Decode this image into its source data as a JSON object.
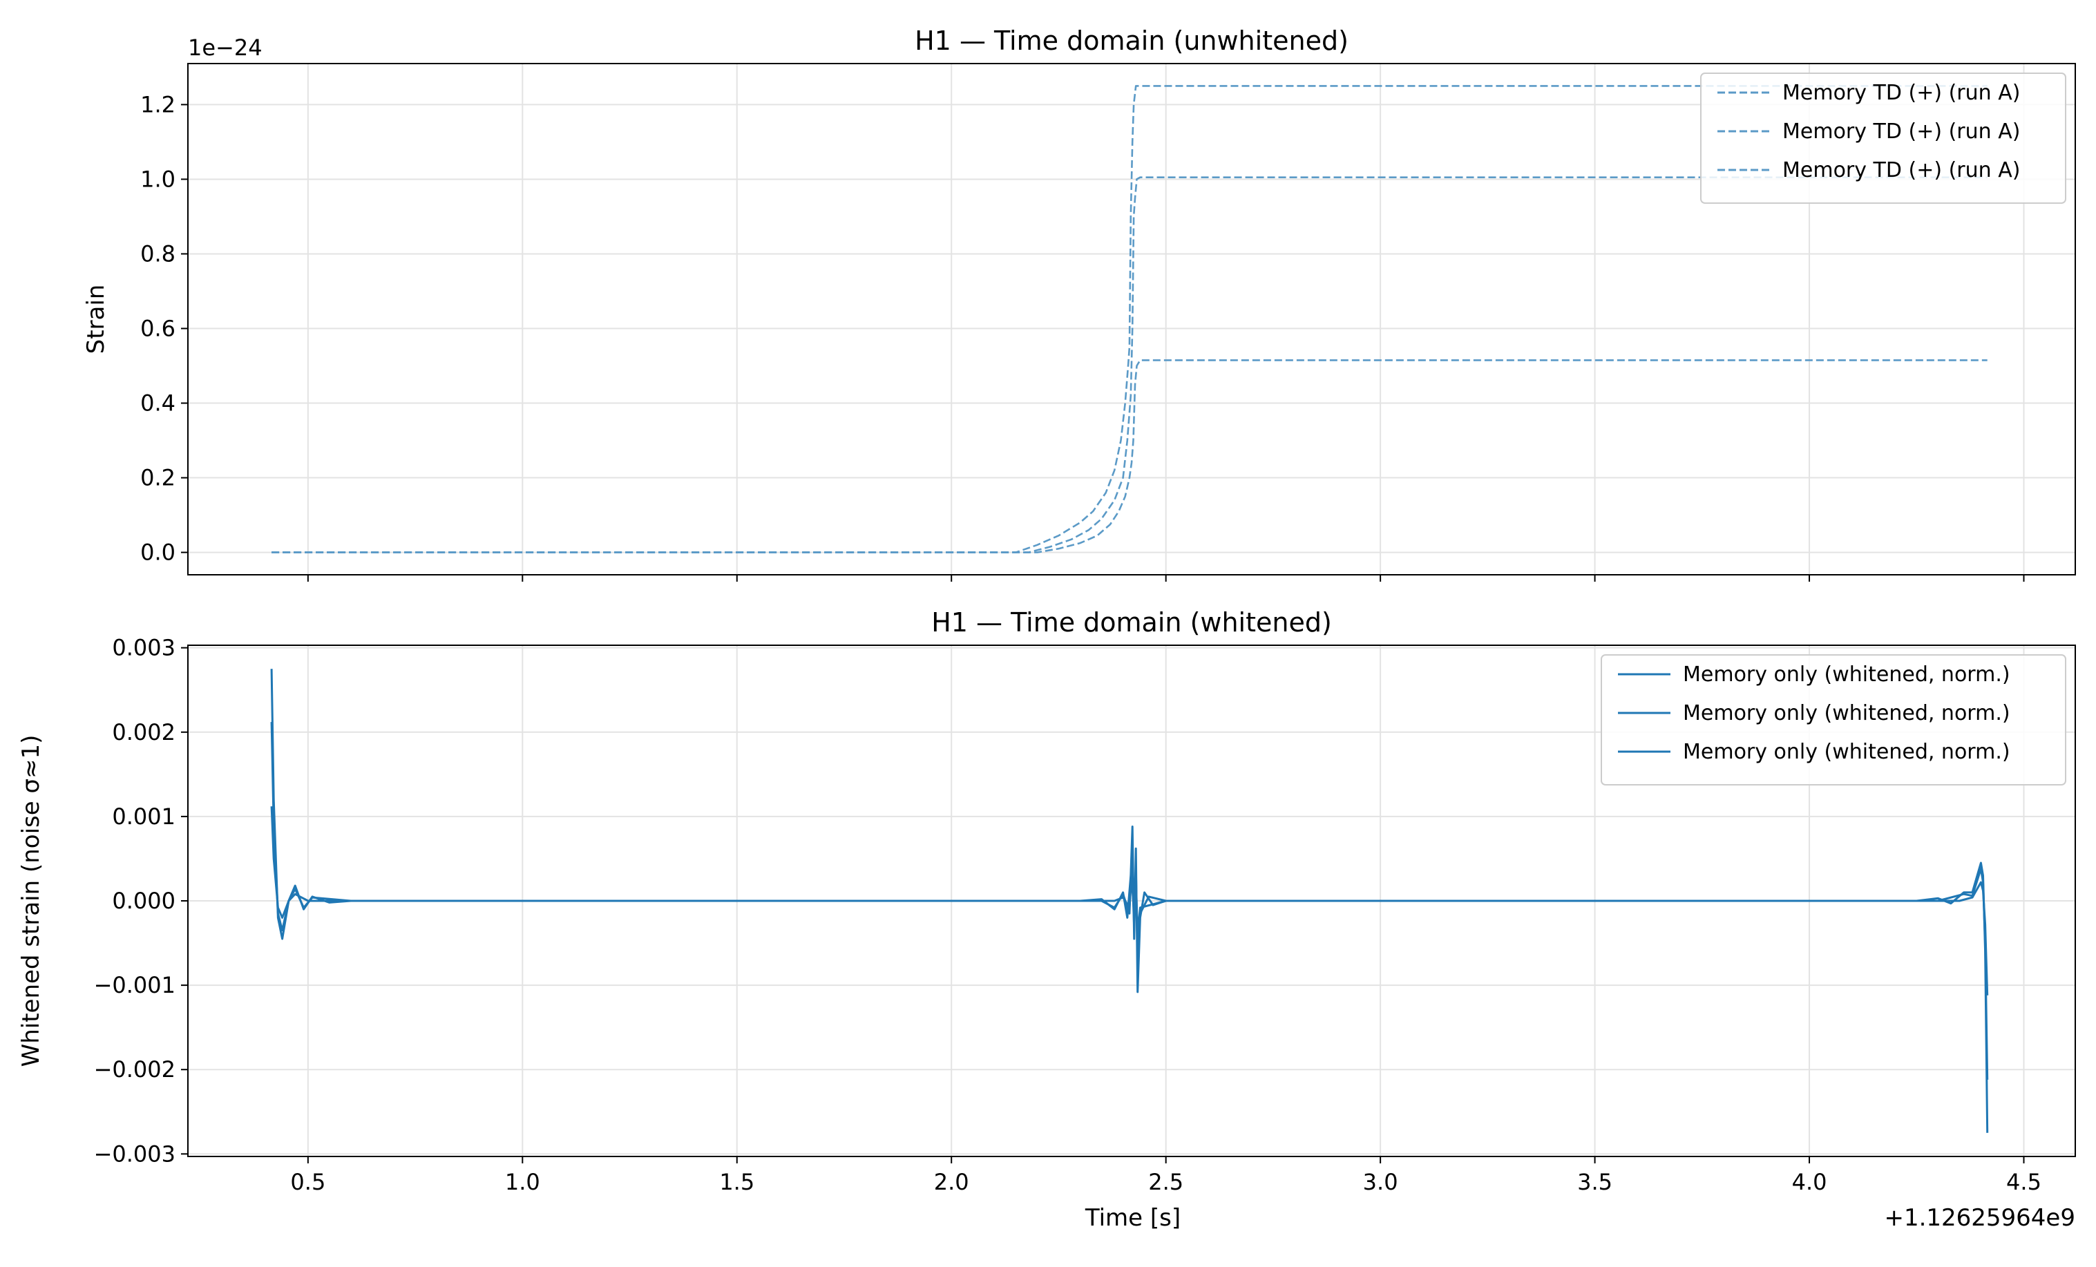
{
  "chart_data": [
    {
      "type": "line",
      "title": "H1 — Time domain (unwhitened)",
      "xlabel": "",
      "ylabel": "Strain",
      "y_multiplier_label": "1e−24",
      "xlim": [
        0.22,
        4.62
      ],
      "ylim": [
        -0.06,
        1.31
      ],
      "x_ticks": [
        0.5,
        1.0,
        1.5,
        2.0,
        2.5,
        3.0,
        3.5,
        4.0,
        4.5
      ],
      "x_tick_labels_shown": false,
      "y_ticks": [
        0.0,
        0.2,
        0.4,
        0.6,
        0.8,
        1.0,
        1.2
      ],
      "y_tick_labels": [
        "0.0",
        "0.2",
        "0.4",
        "0.6",
        "0.8",
        "1.0",
        "1.2"
      ],
      "grid": true,
      "legend_position": "top-right",
      "line_style": "dashed",
      "color": "#5b9ac7",
      "series": [
        {
          "name": "Memory TD (+) (run A)",
          "points": [
            [
              0.415,
              0
            ],
            [
              2.15,
              0
            ],
            [
              2.2,
              0.02
            ],
            [
              2.25,
              0.045
            ],
            [
              2.3,
              0.08
            ],
            [
              2.33,
              0.11
            ],
            [
              2.36,
              0.16
            ],
            [
              2.38,
              0.22
            ],
            [
              2.395,
              0.3
            ],
            [
              2.405,
              0.4
            ],
            [
              2.412,
              0.5
            ],
            [
              2.415,
              0.55
            ],
            [
              2.418,
              0.9
            ],
            [
              2.42,
              1.0
            ],
            [
              2.422,
              1.1
            ],
            [
              2.425,
              1.2
            ],
            [
              2.43,
              1.25
            ],
            [
              4.415,
              1.25
            ]
          ]
        },
        {
          "name": "Memory TD (+) (run A)",
          "points": [
            [
              0.415,
              0
            ],
            [
              2.18,
              0
            ],
            [
              2.23,
              0.015
            ],
            [
              2.28,
              0.035
            ],
            [
              2.32,
              0.06
            ],
            [
              2.35,
              0.09
            ],
            [
              2.38,
              0.14
            ],
            [
              2.4,
              0.2
            ],
            [
              2.41,
              0.3
            ],
            [
              2.418,
              0.42
            ],
            [
              2.422,
              0.6
            ],
            [
              2.425,
              0.9
            ],
            [
              2.428,
              0.95
            ],
            [
              2.432,
              1.0
            ],
            [
              2.44,
              1.005
            ],
            [
              4.415,
              1.005
            ]
          ]
        },
        {
          "name": "Memory TD (+) (run A)",
          "points": [
            [
              0.415,
              0
            ],
            [
              2.2,
              0
            ],
            [
              2.25,
              0.01
            ],
            [
              2.3,
              0.025
            ],
            [
              2.34,
              0.045
            ],
            [
              2.37,
              0.075
            ],
            [
              2.39,
              0.11
            ],
            [
              2.405,
              0.15
            ],
            [
              2.415,
              0.2
            ],
            [
              2.42,
              0.24
            ],
            [
              2.424,
              0.3
            ],
            [
              2.428,
              0.45
            ],
            [
              2.432,
              0.5
            ],
            [
              2.44,
              0.515
            ],
            [
              4.415,
              0.515
            ]
          ]
        }
      ]
    },
    {
      "type": "line",
      "title": "H1 — Time domain (whitened)",
      "xlabel": "Time [s]",
      "ylabel": "Whitened strain (noise σ≈1)",
      "x_offset_label": "+1.12625964e9",
      "xlim": [
        0.22,
        4.62
      ],
      "ylim": [
        -0.00303,
        0.00303
      ],
      "x_ticks": [
        0.5,
        1.0,
        1.5,
        2.0,
        2.5,
        3.0,
        3.5,
        4.0,
        4.5
      ],
      "x_tick_labels": [
        "0.5",
        "1.0",
        "1.5",
        "2.0",
        "2.5",
        "3.0",
        "3.5",
        "4.0",
        "4.5"
      ],
      "y_ticks": [
        -0.003,
        -0.002,
        -0.001,
        0.0,
        0.001,
        0.002,
        0.003
      ],
      "y_tick_labels": [
        "−0.003",
        "−0.002",
        "−0.001",
        "0.000",
        "0.001",
        "0.002",
        "0.003"
      ],
      "grid": true,
      "legend_position": "top-right",
      "line_style": "solid",
      "color": "#1f77b4",
      "series": [
        {
          "name": "Memory only (whitened, norm.)",
          "points": [
            [
              0.415,
              0.00275
            ],
            [
              0.42,
              0.0012
            ],
            [
              0.43,
              -0.0002
            ],
            [
              0.44,
              -0.00045
            ],
            [
              0.455,
              0
            ],
            [
              0.47,
              0.00018
            ],
            [
              0.49,
              -0.0001
            ],
            [
              0.51,
              5e-05
            ],
            [
              0.55,
              -2e-05
            ],
            [
              0.6,
              0
            ],
            [
              2.3,
              0
            ],
            [
              2.35,
              2e-05
            ],
            [
              2.38,
              -0.0001
            ],
            [
              2.4,
              0.0001
            ],
            [
              2.41,
              -0.0002
            ],
            [
              2.418,
              0.0003
            ],
            [
              2.422,
              0.00088
            ],
            [
              2.426,
              -0.00045
            ],
            [
              2.43,
              0.00062
            ],
            [
              2.434,
              -0.00108
            ],
            [
              2.44,
              -0.0002
            ],
            [
              2.45,
              0.0001
            ],
            [
              2.47,
              -5e-05
            ],
            [
              2.5,
              0
            ],
            [
              4.25,
              0
            ],
            [
              4.3,
              3e-05
            ],
            [
              4.33,
              -3e-05
            ],
            [
              4.36,
              0.0001
            ],
            [
              4.38,
              0.0001
            ],
            [
              4.4,
              0.00045
            ],
            [
              4.405,
              0.0003
            ],
            [
              4.41,
              -0.0006
            ],
            [
              4.415,
              -0.00275
            ]
          ]
        },
        {
          "name": "Memory only (whitened, norm.)",
          "points": [
            [
              0.415,
              0.00212
            ],
            [
              0.42,
              0.0009
            ],
            [
              0.43,
              -0.00015
            ],
            [
              0.44,
              -0.00035
            ],
            [
              0.455,
              0
            ],
            [
              0.47,
              0.00014
            ],
            [
              0.49,
              -8e-05
            ],
            [
              0.51,
              4e-05
            ],
            [
              0.6,
              0
            ],
            [
              2.35,
              0
            ],
            [
              2.38,
              -8e-05
            ],
            [
              2.4,
              8e-05
            ],
            [
              2.415,
              -0.00015
            ],
            [
              2.42,
              0.0005
            ],
            [
              2.426,
              -0.0003
            ],
            [
              2.43,
              0.0004
            ],
            [
              2.434,
              -0.0007
            ],
            [
              2.44,
              -0.00015
            ],
            [
              2.46,
              5e-05
            ],
            [
              2.5,
              0
            ],
            [
              4.3,
              0
            ],
            [
              4.36,
              8e-05
            ],
            [
              4.38,
              6e-05
            ],
            [
              4.4,
              0.00038
            ],
            [
              4.405,
              0.00022
            ],
            [
              4.41,
              -0.0005
            ],
            [
              4.415,
              -0.00212
            ]
          ]
        },
        {
          "name": "Memory only (whitened, norm.)",
          "points": [
            [
              0.415,
              0.00112
            ],
            [
              0.42,
              0.0005
            ],
            [
              0.43,
              -8e-05
            ],
            [
              0.44,
              -0.0002
            ],
            [
              0.455,
              0
            ],
            [
              0.47,
              8e-05
            ],
            [
              0.5,
              0
            ],
            [
              2.38,
              0
            ],
            [
              2.4,
              4e-05
            ],
            [
              2.415,
              -8e-05
            ],
            [
              2.42,
              0.00028
            ],
            [
              2.426,
              -0.00016
            ],
            [
              2.43,
              0.00022
            ],
            [
              2.434,
              -0.00038
            ],
            [
              2.44,
              -8e-05
            ],
            [
              2.5,
              0
            ],
            [
              4.35,
              0
            ],
            [
              4.38,
              4e-05
            ],
            [
              4.4,
              0.00022
            ],
            [
              4.405,
              0.00012
            ],
            [
              4.41,
              -0.00028
            ],
            [
              4.415,
              -0.00112
            ]
          ]
        }
      ]
    }
  ]
}
